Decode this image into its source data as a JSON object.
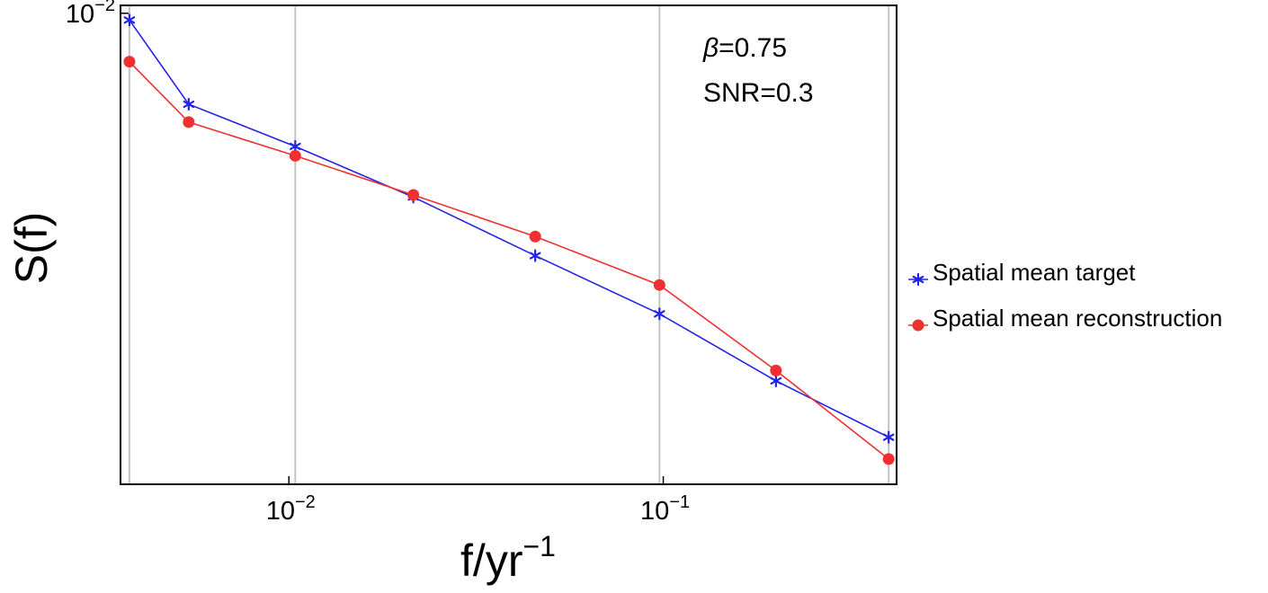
{
  "chart_data": {
    "type": "line",
    "xscale": "log",
    "yscale": "log",
    "xlabel": {
      "base": "f/yr",
      "sup": "−1"
    },
    "ylabel": "S(f)",
    "x_ticks": [
      {
        "value": 0.01,
        "base": "10",
        "exp": "−2"
      },
      {
        "value": 0.1,
        "base": "10",
        "exp": "−1"
      }
    ],
    "y_ticks": [
      {
        "value": 0.01,
        "base": "10",
        "exp": "−2"
      }
    ],
    "xlim": [
      0.00355,
      0.42
    ],
    "ylim": [
      0.00171,
      0.0103
    ],
    "x_gridlines": [
      0.00375,
      0.0104,
      0.0977,
      0.4
    ],
    "grid": "vertical",
    "legend_position": "right",
    "annotations": [
      {
        "symbol": "β",
        "text": "=0.75"
      },
      {
        "text": "SNR=0.3"
      }
    ],
    "x": [
      0.00375,
      0.0054,
      0.0104,
      0.0215,
      0.0455,
      0.0977,
      0.2,
      0.4
    ],
    "series": [
      {
        "name": "Spatial mean target",
        "color": "#2323e8",
        "marker": "star",
        "values": [
          0.00975,
          0.00711,
          0.00607,
          0.00502,
          0.00403,
          0.00324,
          0.00252,
          0.00204
        ]
      },
      {
        "name": "Spatial mean reconstruction",
        "color": "#f03030",
        "marker": "circle",
        "values": [
          0.00834,
          0.00665,
          0.00586,
          0.00506,
          0.00433,
          0.00361,
          0.00262,
          0.00188
        ]
      }
    ]
  }
}
